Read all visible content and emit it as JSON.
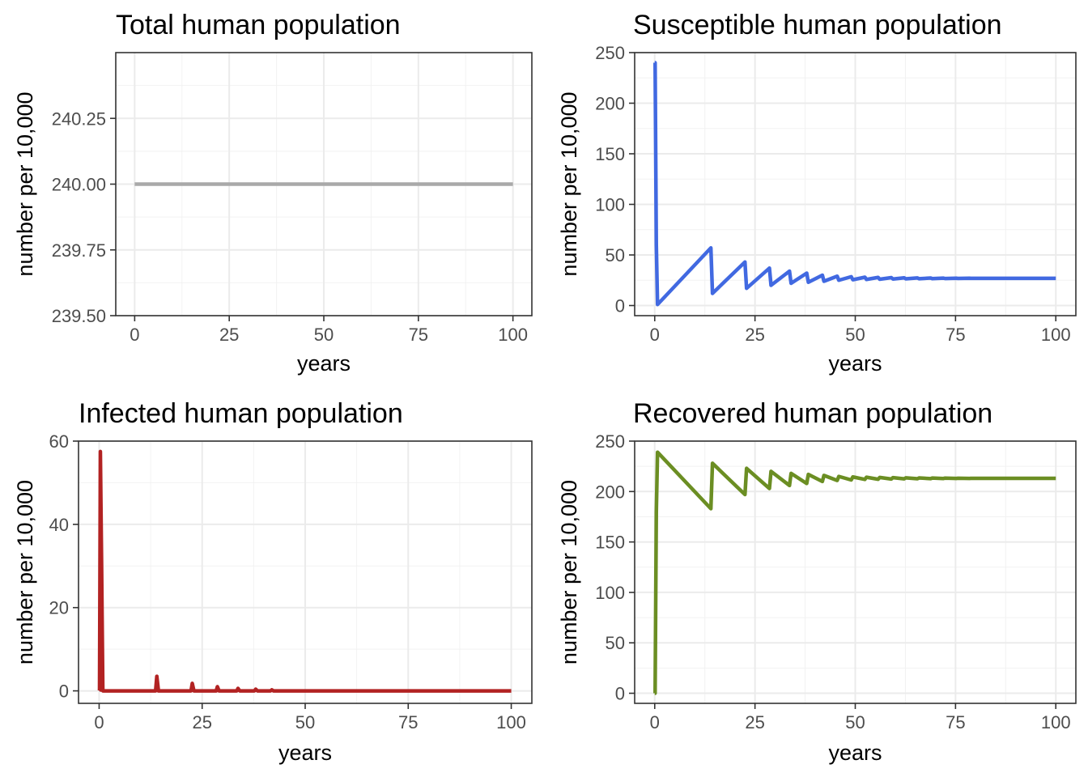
{
  "chart_data": [
    {
      "type": "line",
      "title": "Total human population",
      "xlabel": "years",
      "ylabel": "number per 10,000",
      "xlim": [
        -5,
        105
      ],
      "ylim": [
        239.5,
        240.5
      ],
      "x_ticks": [
        0,
        25,
        50,
        75,
        100
      ],
      "y_ticks": [
        239.5,
        239.75,
        240.0,
        240.25
      ],
      "y_tick_labels": [
        "239.50",
        "239.75",
        "240.00",
        "240.25"
      ],
      "grid": true,
      "color": "#A9A9A9",
      "series": [
        {
          "x": [
            0,
            100
          ],
          "values": [
            240,
            240
          ]
        }
      ]
    },
    {
      "type": "line",
      "title": "Susceptible human population",
      "xlabel": "years",
      "ylabel": "number per 10,000",
      "xlim": [
        -5,
        105
      ],
      "ylim": [
        -10,
        250
      ],
      "x_ticks": [
        0,
        25,
        50,
        75,
        100
      ],
      "y_ticks": [
        0,
        50,
        100,
        150,
        200,
        250
      ],
      "y_tick_labels": [
        "0",
        "50",
        "100",
        "150",
        "200",
        "250"
      ],
      "grid": true,
      "color": "#4169E1",
      "series": [
        {
          "x": [
            0,
            0.1,
            0.4,
            0.7,
            14.0,
            14.4,
            22.5,
            22.9,
            28.6,
            29.0,
            33.6,
            34.0,
            37.9,
            38.3,
            41.8,
            42.2,
            45.5,
            45.9,
            49.0,
            49.4,
            52.4,
            52.8,
            55.7,
            56.1,
            59.0,
            59.4,
            62.2,
            62.6,
            65.5,
            65.9,
            68.8,
            69.2,
            72.0,
            72.4,
            75.2,
            75.6,
            78.5,
            78.8,
            100
          ],
          "values": [
            240,
            240,
            60,
            1,
            57,
            12,
            43,
            17,
            37,
            20,
            34,
            22,
            32,
            23,
            30,
            24,
            29,
            25,
            28.5,
            25.5,
            28,
            25.8,
            27.8,
            26,
            27.6,
            26.2,
            27.4,
            26.4,
            27.3,
            26.5,
            27.2,
            26.6,
            27.1,
            26.7,
            27,
            26.8,
            27,
            26.9,
            26.9
          ]
        }
      ]
    },
    {
      "type": "line",
      "title": "Infected human population",
      "xlabel": "years",
      "ylabel": "number per 10,000",
      "xlim": [
        -5,
        105
      ],
      "ylim": [
        -3,
        60
      ],
      "x_ticks": [
        0,
        25,
        50,
        75,
        100
      ],
      "y_ticks": [
        0,
        20,
        40,
        60
      ],
      "y_tick_labels": [
        "0",
        "20",
        "40",
        "60"
      ],
      "grid": true,
      "color": "#B22222",
      "series": [
        {
          "x": [
            0,
            0.1,
            0.3,
            0.6,
            0.9,
            13.7,
            14.0,
            14.4,
            22.3,
            22.6,
            23.0,
            28.4,
            28.7,
            29.1,
            33.4,
            33.7,
            34.1,
            37.7,
            38.0,
            38.4,
            41.6,
            41.9,
            42.3,
            100
          ],
          "values": [
            0,
            0.1,
            57.5,
            30,
            0,
            0,
            3.5,
            0,
            0,
            1.8,
            0,
            0,
            1,
            0,
            0,
            0.6,
            0,
            0,
            0.4,
            0,
            0,
            0.25,
            0,
            0
          ]
        }
      ]
    },
    {
      "type": "line",
      "title": "Recovered human population",
      "xlabel": "years",
      "ylabel": "number per 10,000",
      "xlim": [
        -5,
        105
      ],
      "ylim": [
        -10,
        250
      ],
      "x_ticks": [
        0,
        25,
        50,
        75,
        100
      ],
      "y_ticks": [
        0,
        50,
        100,
        150,
        200,
        250
      ],
      "y_tick_labels": [
        "0",
        "50",
        "100",
        "150",
        "200",
        "250"
      ],
      "grid": true,
      "color": "#6B8E23",
      "series": [
        {
          "x": [
            0,
            0.1,
            0.4,
            0.7,
            14.0,
            14.4,
            22.5,
            22.9,
            28.6,
            29.0,
            33.6,
            34.0,
            37.9,
            38.3,
            41.8,
            42.2,
            45.5,
            45.9,
            49.0,
            49.4,
            52.4,
            52.8,
            55.7,
            56.1,
            59.0,
            59.4,
            62.2,
            62.6,
            65.5,
            65.9,
            68.8,
            69.2,
            72.0,
            72.4,
            75.2,
            75.6,
            78.5,
            78.8,
            100
          ],
          "values": [
            0,
            0,
            180,
            239,
            183,
            228,
            197,
            223,
            203,
            220,
            206,
            218,
            208,
            217,
            210,
            216,
            211,
            215,
            211.5,
            214.5,
            212,
            214.2,
            212.2,
            214,
            212.4,
            213.8,
            212.6,
            213.6,
            212.7,
            213.5,
            212.8,
            213.4,
            212.9,
            213.3,
            213,
            213.2,
            213,
            213.1,
            213.1
          ]
        }
      ]
    }
  ]
}
